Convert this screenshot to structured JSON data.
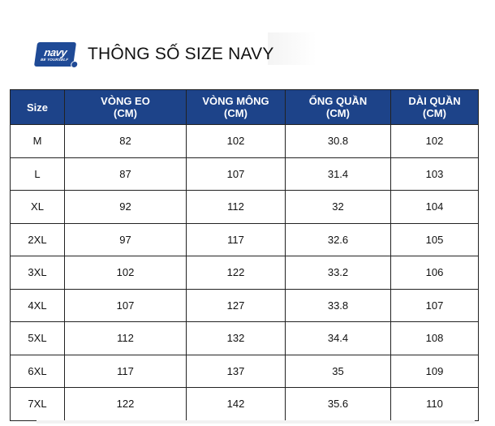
{
  "header": {
    "logo": {
      "brand": "navy",
      "tagline": "BE YOURSELF",
      "icon": "navy-logo-icon"
    },
    "title": "THÔNG SỐ SIZE NAVY"
  },
  "colors": {
    "header_bg": "#1d4389",
    "logo_bg": "#1f4a96",
    "border": "#222222"
  },
  "table": {
    "columns": [
      {
        "line1": "Size",
        "line2": ""
      },
      {
        "line1": "VÒNG EO",
        "line2": "(CM)"
      },
      {
        "line1": "VÒNG MÔNG",
        "line2": "(CM)"
      },
      {
        "line1": "ỐNG QUẦN",
        "line2": "(CM)"
      },
      {
        "line1": "DÀI QUẦN",
        "line2": "(CM)"
      }
    ],
    "rows": [
      [
        "M",
        "82",
        "102",
        "30.8",
        "102"
      ],
      [
        "L",
        "87",
        "107",
        "31.4",
        "103"
      ],
      [
        "XL",
        "92",
        "112",
        "32",
        "104"
      ],
      [
        "2XL",
        "97",
        "117",
        "32.6",
        "105"
      ],
      [
        "3XL",
        "102",
        "122",
        "33.2",
        "106"
      ],
      [
        "4XL",
        "107",
        "127",
        "33.8",
        "107"
      ],
      [
        "5XL",
        "112",
        "132",
        "34.4",
        "108"
      ],
      [
        "6XL",
        "117",
        "137",
        "35",
        "109"
      ],
      [
        "7XL",
        "122",
        "142",
        "35.6",
        "110"
      ]
    ]
  }
}
